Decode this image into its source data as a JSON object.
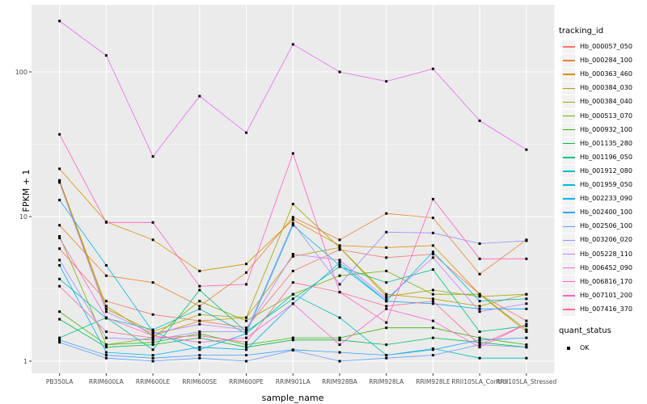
{
  "chart_data": {
    "type": "line",
    "title": "",
    "xlabel": "sample_name",
    "ylabel": "FPKM + 1",
    "y_scale": "log10",
    "y_ticks": [
      1,
      10,
      100
    ],
    "y_minor_ticks": [
      3.1623,
      31.623
    ],
    "ylim_expanded": [
      0.82,
      280
    ],
    "grid": true,
    "legend_position": "right",
    "categories": [
      "PB350LA",
      "RRIM600LA",
      "RRIM600LE",
      "RRIM600SE",
      "RRIM600PE",
      "RRIM901LA",
      "RRIM928BA",
      "RRIM928LA",
      "RRIM928LE",
      "RRII105LA_Control",
      "RRII105LA_Stressed"
    ],
    "legend_title": "tracking_id",
    "series": [
      {
        "name": "Hb_000057_050",
        "color": "#F8766D",
        "values": [
          6.0,
          2.6,
          2.1,
          1.9,
          1.7,
          4.2,
          5.9,
          5.2,
          5.5,
          2.9,
          1.9
        ]
      },
      {
        "name": "Hb_000284_100",
        "color": "#EA8331",
        "values": [
          8.7,
          3.9,
          3.5,
          2.4,
          4.1,
          9.9,
          6.9,
          10.5,
          9.8,
          4.0,
          6.9
        ]
      },
      {
        "name": "Hb_000363_460",
        "color": "#D89000",
        "values": [
          21.4,
          9.2,
          6.9,
          4.2,
          4.7,
          9.5,
          6.3,
          6.1,
          6.3,
          2.9,
          1.6
        ]
      },
      {
        "name": "Hb_000384_030",
        "color": "#C09B00",
        "values": [
          17.8,
          2.4,
          1.5,
          1.9,
          2.0,
          5.3,
          6.1,
          2.9,
          2.7,
          2.4,
          2.9
        ]
      },
      {
        "name": "Hb_000384_040",
        "color": "#A3A500",
        "values": [
          17.5,
          2.3,
          1.6,
          2.1,
          2.0,
          12.2,
          6.1,
          2.8,
          3.1,
          2.8,
          2.9
        ]
      },
      {
        "name": "Hb_000513_070",
        "color": "#7CAE00",
        "values": [
          7.3,
          1.3,
          1.45,
          2.6,
          1.9,
          2.9,
          3.9,
          4.2,
          2.9,
          2.9,
          1.65
        ]
      },
      {
        "name": "Hb_000932_100",
        "color": "#39B600",
        "values": [
          2.2,
          1.3,
          1.35,
          1.55,
          1.3,
          1.45,
          1.45,
          1.7,
          1.7,
          1.45,
          1.3
        ]
      },
      {
        "name": "Hb_001135_280",
        "color": "#00BB4E",
        "values": [
          1.95,
          1.25,
          1.3,
          1.45,
          1.25,
          1.4,
          1.4,
          1.3,
          1.45,
          1.35,
          1.25
        ]
      },
      {
        "name": "Hb_001196_050",
        "color": "#00C087",
        "values": [
          1.45,
          2.0,
          1.2,
          3.1,
          1.6,
          2.7,
          4.5,
          3.5,
          4.3,
          1.6,
          1.75
        ]
      },
      {
        "name": "Hb_001912_080",
        "color": "#00C0B8",
        "values": [
          3.7,
          1.98,
          1.65,
          2.3,
          1.55,
          2.9,
          2.0,
          1.1,
          1.22,
          1.05,
          1.05
        ]
      },
      {
        "name": "Hb_001959_050",
        "color": "#00BAE0",
        "values": [
          13.0,
          4.6,
          1.6,
          1.2,
          1.55,
          8.7,
          4.6,
          2.6,
          5.7,
          2.6,
          2.7
        ]
      },
      {
        "name": "Hb_002233_090",
        "color": "#00B0F6",
        "values": [
          4.6,
          1.15,
          1.1,
          1.25,
          1.2,
          2.5,
          4.8,
          2.6,
          2.5,
          2.3,
          2.3
        ]
      },
      {
        "name": "Hb_002400_100",
        "color": "#35A2FF",
        "values": [
          1.4,
          1.1,
          1.05,
          1.1,
          1.1,
          1.2,
          1.15,
          1.1,
          1.2,
          1.4,
          1.45
        ]
      },
      {
        "name": "Hb_002506_100",
        "color": "#619CFF",
        "values": [
          1.35,
          1.05,
          1.0,
          1.05,
          1.0,
          1.19,
          1.0,
          1.05,
          1.1,
          1.3,
          1.25
        ]
      },
      {
        "name": "Hb_003206_020",
        "color": "#9590FF",
        "values": [
          5.0,
          1.45,
          1.4,
          1.6,
          1.6,
          9.0,
          3.4,
          7.8,
          7.7,
          6.5,
          6.8
        ]
      },
      {
        "name": "Hb_005228_110",
        "color": "#C77CFF",
        "values": [
          17.2,
          2.2,
          1.55,
          1.8,
          1.65,
          5.5,
          5.0,
          2.7,
          5.2,
          2.2,
          2.5
        ]
      },
      {
        "name": "Hb_006452_090",
        "color": "#E76BF3",
        "values": [
          225,
          130,
          26,
          68,
          38,
          155,
          100,
          86,
          105,
          46,
          29
        ]
      },
      {
        "name": "Hb_006816_170",
        "color": "#FA62DB",
        "values": [
          7.1,
          2.0,
          1.5,
          1.35,
          1.45,
          2.5,
          1.3,
          2.3,
          1.9,
          1.25,
          1.8
        ]
      },
      {
        "name": "Hb_007101_200",
        "color": "#FF62BC",
        "values": [
          37,
          9.1,
          9.1,
          3.3,
          3.4,
          27.3,
          3.0,
          1.85,
          13.2,
          5.1,
          5.1
        ]
      },
      {
        "name": "Hb_007416_370",
        "color": "#FF6A98",
        "values": [
          3.3,
          1.6,
          1.45,
          1.5,
          1.35,
          3.5,
          3.0,
          2.4,
          2.6,
          1.3,
          1.8
        ]
      }
    ],
    "quant_status_legend": {
      "title": "quant_status",
      "items": [
        {
          "label": "OK",
          "marker": "black-square"
        }
      ]
    },
    "style": {
      "panel_bg": "#EBEBEB",
      "grid_color": "#FFFFFF",
      "axis_text_color": "#4D4D4D",
      "marker_color": "#000000",
      "legend_key_bg": "#F2F2F2"
    }
  }
}
